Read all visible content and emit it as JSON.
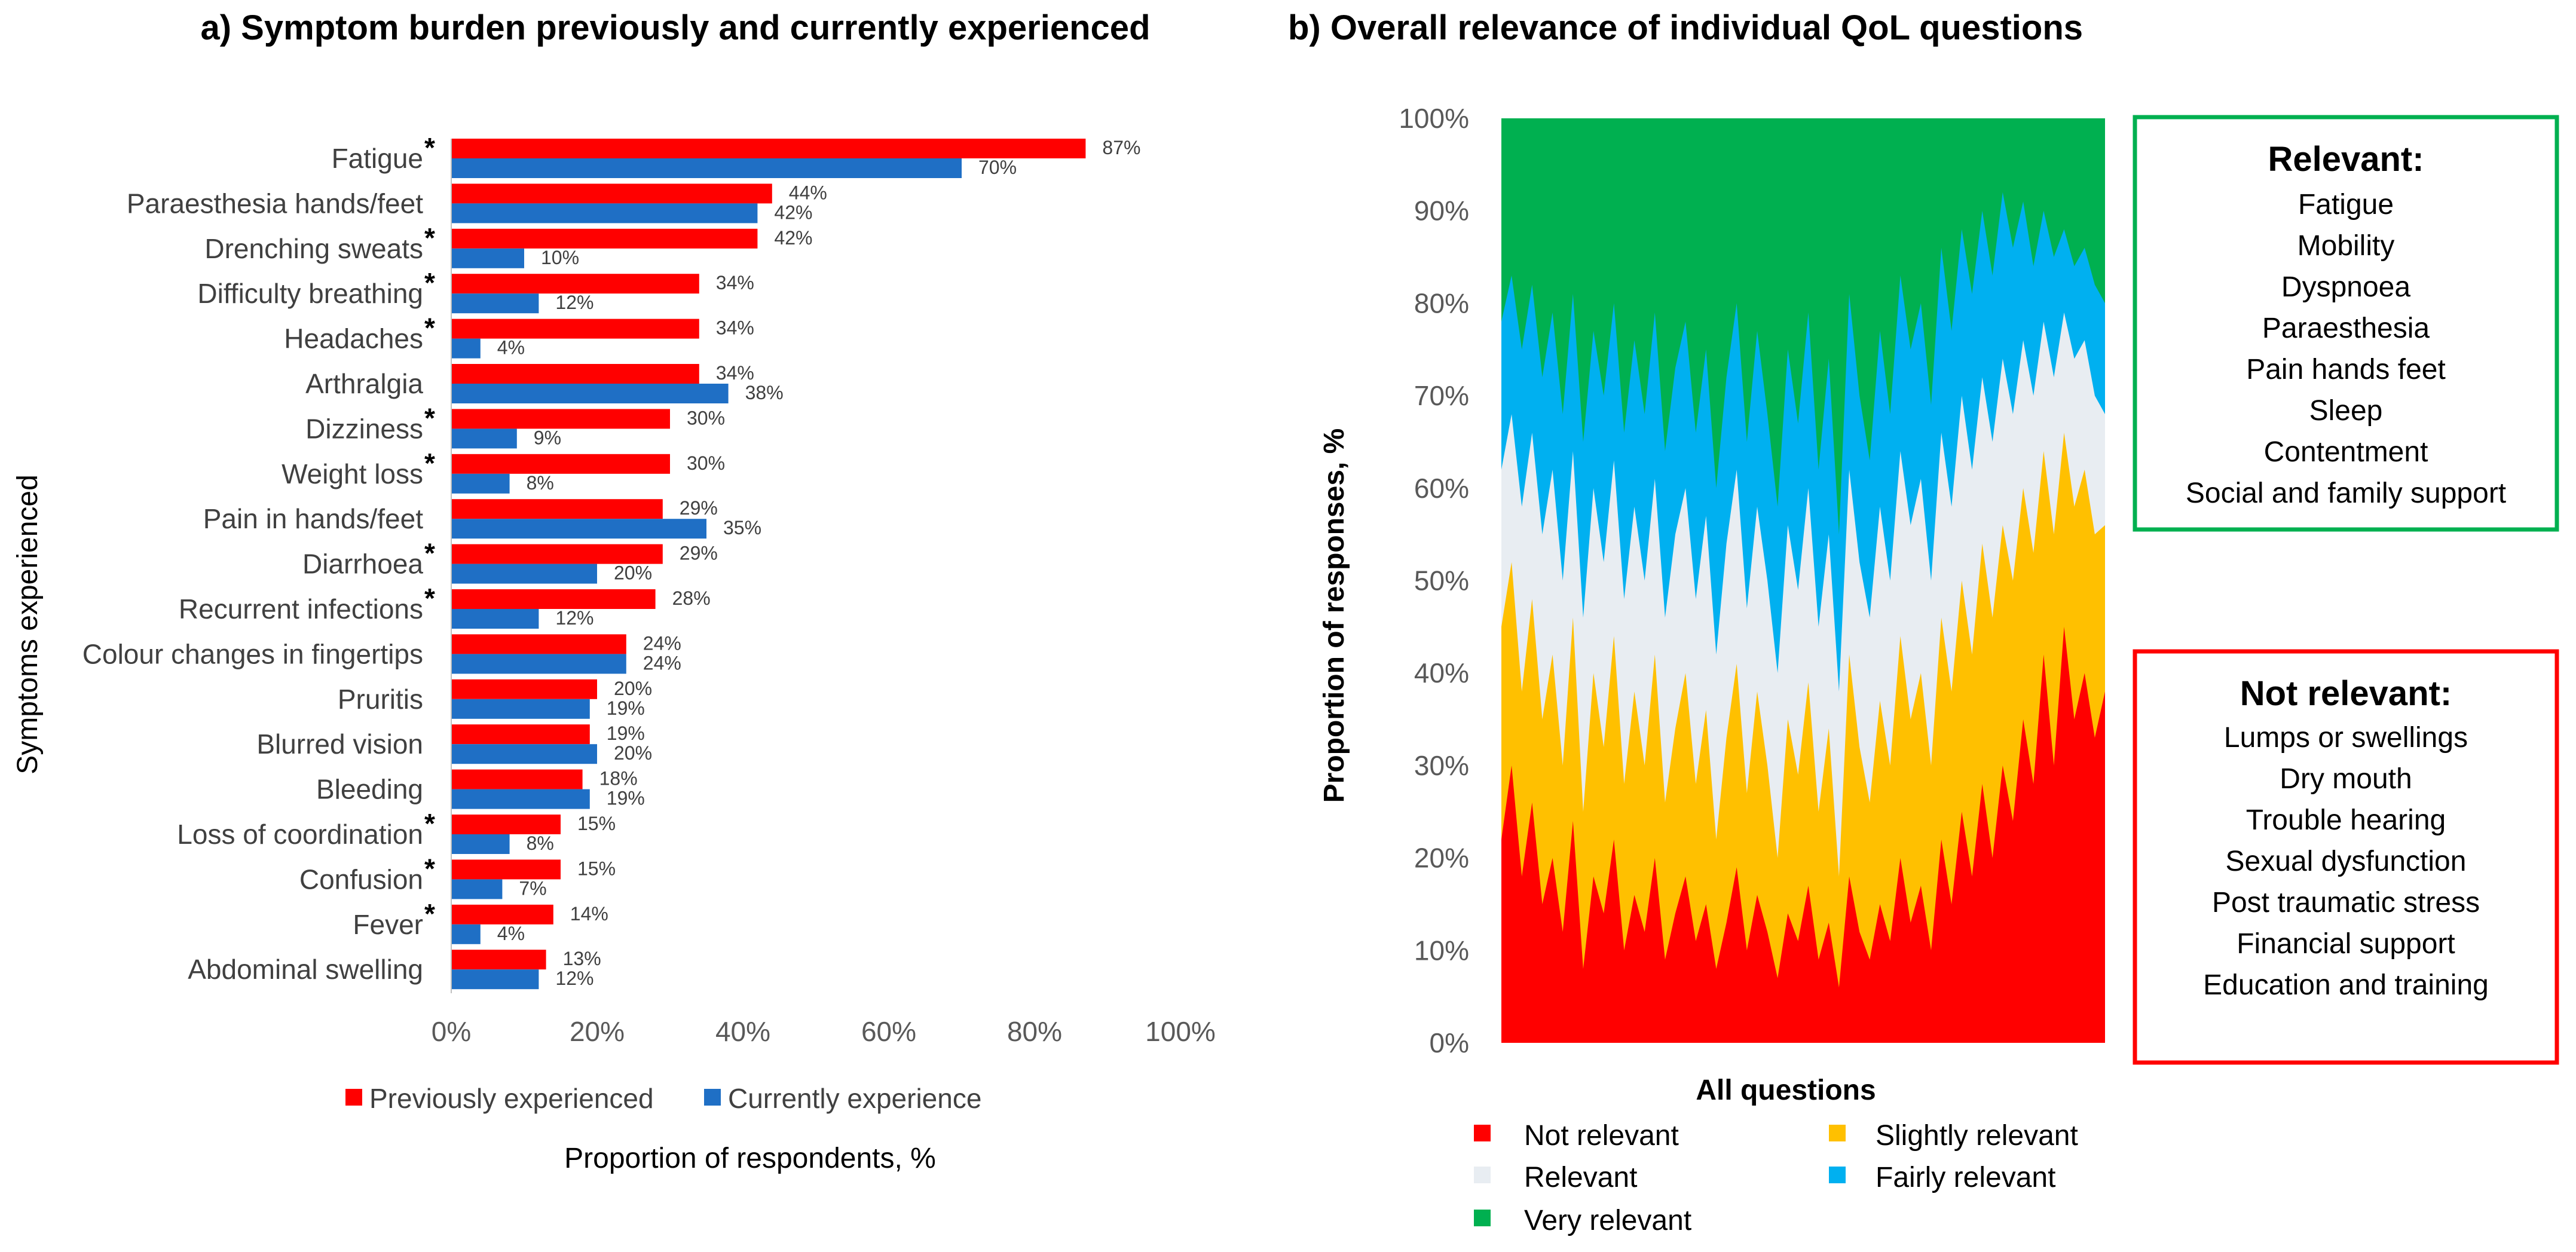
{
  "chart_data": [
    {
      "type": "bar",
      "orientation": "horizontal",
      "title": "a) Symptom burden previously and currently experienced",
      "xlabel": "Proportion of respondents, %",
      "ylabel": "Symptoms experienced",
      "xlim": [
        0,
        100
      ],
      "xticks": [
        "0%",
        "20%",
        "40%",
        "60%",
        "80%",
        "100%"
      ],
      "categories": [
        "Fatigue",
        "Paraesthesia hands/feet",
        "Drenching sweats",
        "Difficulty breathing",
        "Headaches",
        "Arthralgia",
        "Dizziness",
        "Weight loss",
        "Pain in hands/feet",
        "Diarrhoea",
        "Recurrent infections",
        "Colour changes in fingertips",
        "Pruritis",
        "Blurred vision",
        "Bleeding",
        "Loss of coordination",
        "Confusion",
        "Fever",
        "Abdominal swelling"
      ],
      "significant": [
        true,
        false,
        true,
        true,
        true,
        false,
        true,
        true,
        false,
        true,
        true,
        false,
        false,
        false,
        false,
        true,
        true,
        true,
        false
      ],
      "asterisk": "*",
      "series": [
        {
          "name": "Previously experienced",
          "color": "#FF0000",
          "values": [
            87,
            44,
            42,
            34,
            34,
            34,
            30,
            30,
            29,
            29,
            28,
            24,
            20,
            19,
            18,
            15,
            15,
            14,
            13
          ],
          "labels": [
            "87%",
            "44%",
            "42%",
            "34%",
            "34%",
            "34%",
            "30%",
            "30%",
            "29%",
            "29%",
            "28%",
            "24%",
            "20%",
            "19%",
            "18%",
            "15%",
            "15%",
            "14%",
            "13%"
          ]
        },
        {
          "name": "Currently experience",
          "color": "#1F6FC5",
          "values": [
            70,
            42,
            10,
            12,
            4,
            38,
            9,
            8,
            35,
            20,
            12,
            24,
            19,
            20,
            19,
            8,
            7,
            4,
            12
          ],
          "labels": [
            "70%",
            "42%",
            "10%",
            "12%",
            "4%",
            "38%",
            "9%",
            "8%",
            "35%",
            "20%",
            "12%",
            "24%",
            "19%",
            "20%",
            "19%",
            "8%",
            "7%",
            "4%",
            "12%"
          ]
        }
      ],
      "legend": "bottom"
    },
    {
      "type": "area",
      "stacked": true,
      "title": "b) Overall relevance of individual QoL questions",
      "xlabel": "All questions",
      "ylabel": "Proportion of responses, %",
      "ylim": [
        0,
        100
      ],
      "yticks": [
        "0%",
        "10%",
        "20%",
        "30%",
        "40%",
        "50%",
        "60%",
        "70%",
        "80%",
        "90%",
        "100%"
      ],
      "legend": "bottom",
      "series": [
        {
          "name": "Not relevant",
          "color": "#FF0000"
        },
        {
          "name": "Slightly relevant",
          "color": "#FFC000"
        },
        {
          "name": "Relevant",
          "color": "#E8EDF2"
        },
        {
          "name": "Fairly relevant",
          "color": "#00B0F0"
        },
        {
          "name": "Very relevant",
          "color": "#00B050"
        }
      ],
      "legend_order": [
        "Not relevant",
        "Slightly relevant",
        "Relevant",
        "Fairly relevant",
        "Very relevant"
      ],
      "x": [
        1,
        2,
        3,
        4,
        5,
        6,
        7,
        8,
        9,
        10,
        11,
        12,
        13,
        14,
        15,
        16,
        17,
        18,
        19,
        20,
        21,
        22,
        23,
        24,
        25,
        26,
        27,
        28,
        29,
        30,
        31,
        32,
        33,
        34,
        35,
        36,
        37,
        38,
        39,
        40,
        41,
        42,
        43,
        44,
        45,
        46,
        47,
        48,
        49,
        50,
        51,
        52,
        53,
        54,
        55,
        56,
        57,
        58,
        59,
        60
      ],
      "cumulative": {
        "not_relevant": [
          22,
          30,
          18,
          26,
          15,
          20,
          12,
          24,
          8,
          18,
          14,
          22,
          10,
          16,
          12,
          20,
          9,
          14,
          18,
          11,
          15,
          8,
          13,
          19,
          10,
          16,
          12,
          7,
          14,
          11,
          17,
          9,
          13,
          6,
          18,
          12,
          9,
          15,
          11,
          20,
          13,
          17,
          10,
          22,
          15,
          25,
          18,
          28,
          20,
          30,
          24,
          35,
          28,
          42,
          30,
          45,
          35,
          40,
          33,
          38
        ],
        "slightly_relevant": [
          45,
          52,
          38,
          48,
          35,
          42,
          30,
          46,
          25,
          40,
          32,
          44,
          28,
          38,
          30,
          42,
          26,
          34,
          40,
          28,
          36,
          22,
          33,
          41,
          27,
          38,
          30,
          20,
          35,
          29,
          39,
          25,
          34,
          18,
          42,
          32,
          26,
          37,
          30,
          44,
          35,
          40,
          30,
          46,
          38,
          50,
          42,
          54,
          46,
          56,
          50,
          60,
          53,
          64,
          55,
          66,
          58,
          62,
          55,
          56
        ],
        "relevant": [
          62,
          68,
          58,
          66,
          55,
          62,
          50,
          64,
          46,
          60,
          52,
          63,
          48,
          58,
          50,
          61,
          46,
          55,
          60,
          48,
          57,
          42,
          54,
          62,
          47,
          58,
          50,
          40,
          56,
          49,
          60,
          45,
          55,
          38,
          62,
          52,
          46,
          58,
          50,
          64,
          56,
          61,
          50,
          66,
          58,
          70,
          62,
          72,
          65,
          74,
          68,
          76,
          70,
          78,
          72,
          79,
          74,
          76,
          70,
          68
        ],
        "fairly_relevant": [
          78,
          83,
          75,
          82,
          72,
          79,
          68,
          81,
          65,
          77,
          70,
          80,
          66,
          76,
          68,
          79,
          64,
          73,
          78,
          66,
          75,
          60,
          72,
          80,
          65,
          77,
          68,
          58,
          75,
          67,
          79,
          62,
          74,
          55,
          81,
          70,
          63,
          77,
          68,
          83,
          75,
          80,
          69,
          86,
          77,
          88,
          81,
          90,
          83,
          92,
          86,
          91,
          84,
          90,
          85,
          88,
          84,
          86,
          82,
          80
        ]
      }
    }
  ],
  "boxes": {
    "relevant": {
      "title": "Relevant:",
      "color": "#00B050",
      "items": [
        "Fatigue",
        "Mobility",
        "Dyspnoea",
        "Paraesthesia",
        "Pain hands feet",
        "Sleep",
        "Contentment",
        "Social and family support"
      ]
    },
    "not_relevant": {
      "title": "Not relevant:",
      "color": "#FF0000",
      "items": [
        "Lumps or swellings",
        "Dry mouth",
        "Trouble hearing",
        "Sexual dysfunction",
        "Post traumatic stress",
        "Financial support",
        "Education and training"
      ]
    }
  }
}
